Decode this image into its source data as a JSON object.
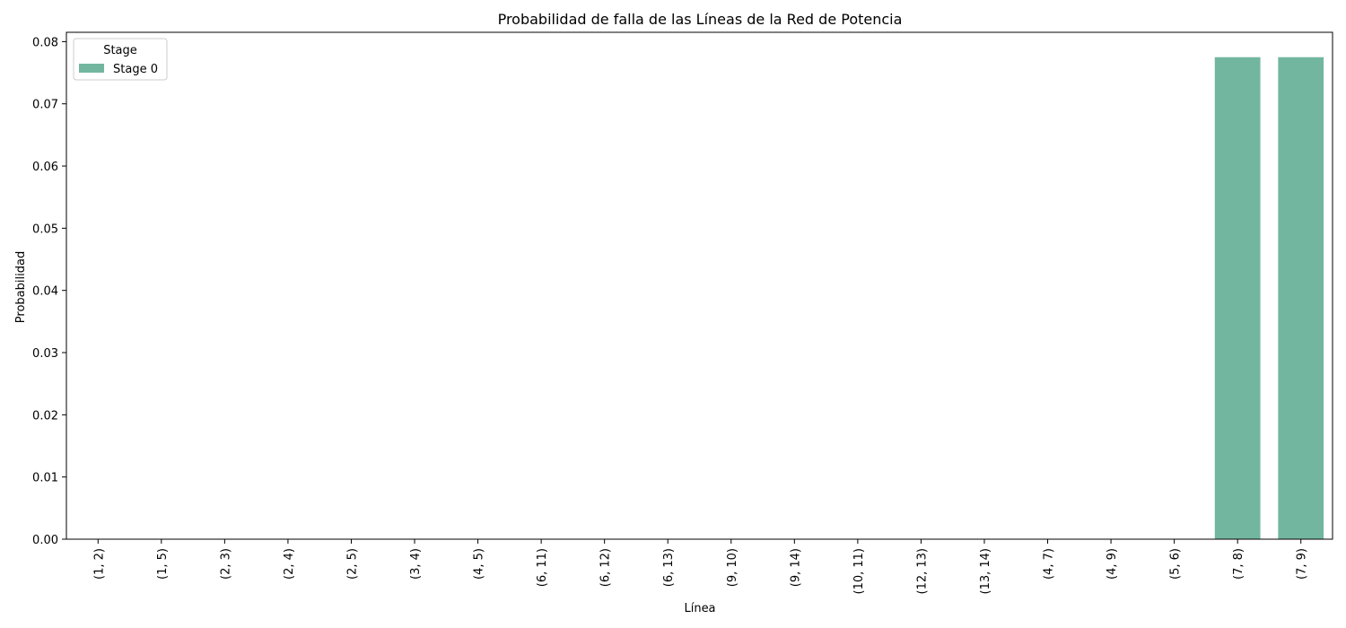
{
  "chart_data": {
    "type": "bar",
    "title": "Probabilidad de falla de las Líneas de la Red de Potencia",
    "xlabel": "Línea",
    "ylabel": "Probabilidad",
    "categories": [
      "(1, 2)",
      "(1, 5)",
      "(2, 3)",
      "(2, 4)",
      "(2, 5)",
      "(3, 4)",
      "(4, 5)",
      "(6, 11)",
      "(6, 12)",
      "(6, 13)",
      "(9, 10)",
      "(9, 14)",
      "(10, 11)",
      "(12, 13)",
      "(13, 14)",
      "(4, 7)",
      "(4, 9)",
      "(5, 6)",
      "(7, 8)",
      "(7, 9)"
    ],
    "series": [
      {
        "name": "Stage 0",
        "color": "#73b6a0",
        "values": [
          0,
          0,
          0,
          0,
          0,
          0,
          0,
          0,
          0,
          0,
          0,
          0,
          0,
          0,
          0,
          0,
          0,
          0,
          0.0775,
          0.0775
        ]
      }
    ],
    "ylim": [
      0,
      0.0815
    ],
    "yticks": [
      "0.00",
      "0.01",
      "0.02",
      "0.03",
      "0.04",
      "0.05",
      "0.06",
      "0.07",
      "0.08"
    ],
    "legend": {
      "title": "Stage",
      "position": "top-left"
    },
    "grid": false
  }
}
